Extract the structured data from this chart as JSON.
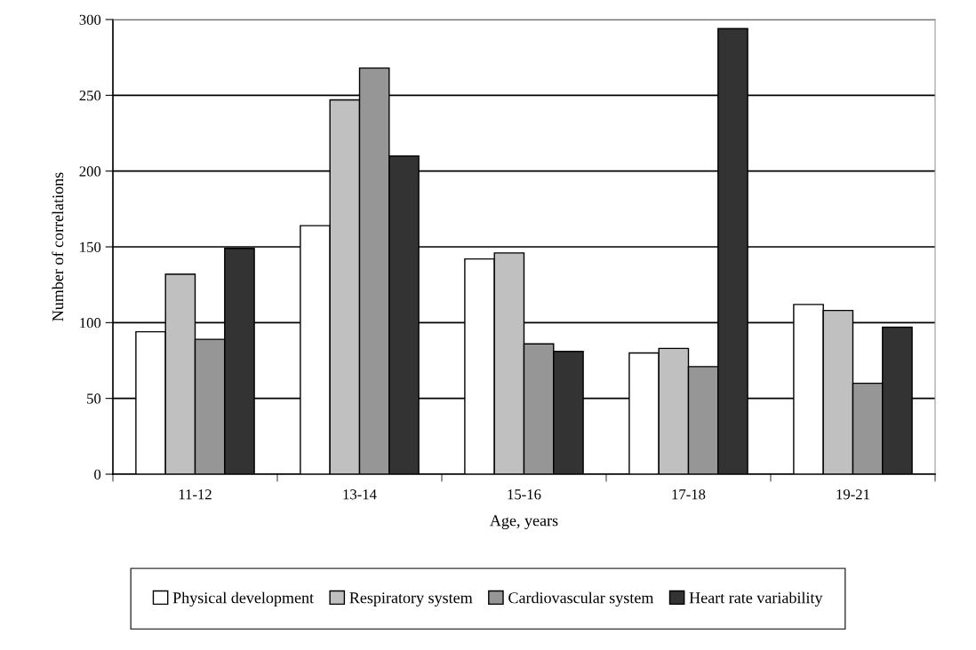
{
  "chart_data": {
    "type": "bar",
    "xlabel": "Age, years",
    "ylabel": "Number of correlations",
    "categories": [
      "11-12",
      "13-14",
      "15-16",
      "17-18",
      "19-21"
    ],
    "series": [
      {
        "name": "Physical development",
        "color": "#ffffff",
        "values": [
          94,
          164,
          142,
          80,
          112
        ]
      },
      {
        "name": "Respiratory system",
        "color": "#c0c0c0",
        "values": [
          132,
          247,
          146,
          83,
          108
        ]
      },
      {
        "name": "Cardiovascular system",
        "color": "#969696",
        "values": [
          89,
          268,
          86,
          71,
          60
        ]
      },
      {
        "name": "Heart rate variability",
        "color": "#333333",
        "values": [
          149,
          210,
          81,
          294,
          97
        ]
      }
    ],
    "ylim": [
      0,
      300
    ],
    "yticks": [
      0,
      50,
      100,
      150,
      200,
      250,
      300
    ],
    "grid": "y",
    "legend": "bottom"
  }
}
